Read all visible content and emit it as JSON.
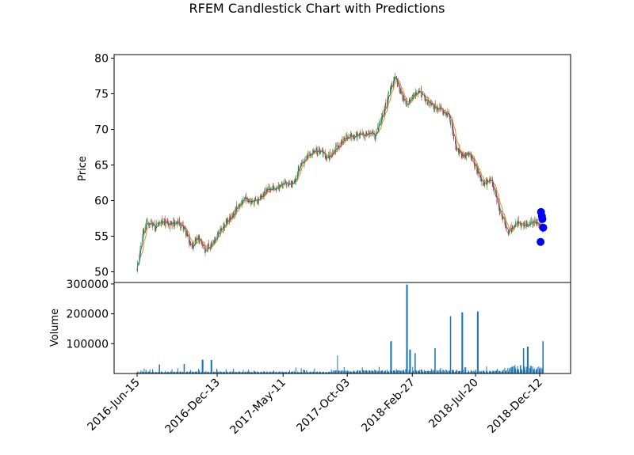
{
  "chart_data": {
    "type": "candlestick",
    "title": "RFEM Candlestick Chart with Predictions",
    "price_panel": {
      "ylabel": "Price",
      "ylim": [
        48.5,
        80.5
      ],
      "yticks": [
        50,
        55,
        60,
        65,
        70,
        75,
        80
      ],
      "close_series": [
        [
          "2016-06-15",
          50.6
        ],
        [
          "2016-06-25",
          54.5
        ],
        [
          "2016-07-08",
          57.0
        ],
        [
          "2016-07-25",
          56.2
        ],
        [
          "2016-08-10",
          57.1
        ],
        [
          "2016-08-28",
          56.6
        ],
        [
          "2016-09-15",
          56.9
        ],
        [
          "2016-09-30",
          56.0
        ],
        [
          "2016-10-15",
          53.5
        ],
        [
          "2016-11-01",
          54.6
        ],
        [
          "2016-11-15",
          52.9
        ],
        [
          "2016-12-01",
          53.8
        ],
        [
          "2016-12-20",
          55.8
        ],
        [
          "2017-01-10",
          57.3
        ],
        [
          "2017-01-30",
          59.2
        ],
        [
          "2017-02-15",
          60.4
        ],
        [
          "2017-03-01",
          59.8
        ],
        [
          "2017-03-20",
          60.2
        ],
        [
          "2017-04-05",
          61.5
        ],
        [
          "2017-04-25",
          61.9
        ],
        [
          "2017-05-11",
          62.6
        ],
        [
          "2017-06-01",
          62.2
        ],
        [
          "2017-06-20",
          65.2
        ],
        [
          "2017-07-10",
          66.5
        ],
        [
          "2017-08-01",
          67.1
        ],
        [
          "2017-08-20",
          66.0
        ],
        [
          "2017-09-10",
          67.5
        ],
        [
          "2017-10-03",
          69.0
        ],
        [
          "2017-10-25",
          69.1
        ],
        [
          "2017-11-15",
          69.4
        ],
        [
          "2017-12-05",
          69.2
        ],
        [
          "2017-12-20",
          71.5
        ],
        [
          "2018-01-05",
          75.0
        ],
        [
          "2018-01-18",
          77.6
        ],
        [
          "2018-02-01",
          75.0
        ],
        [
          "2018-02-15",
          73.4
        ],
        [
          "2018-02-27",
          74.6
        ],
        [
          "2018-03-12",
          75.6
        ],
        [
          "2018-03-25",
          74.4
        ],
        [
          "2018-04-10",
          73.4
        ],
        [
          "2018-04-30",
          72.9
        ],
        [
          "2018-05-20",
          72.2
        ],
        [
          "2018-06-05",
          67.5
        ],
        [
          "2018-06-20",
          66.3
        ],
        [
          "2018-07-05",
          66.8
        ],
        [
          "2018-07-20",
          64.8
        ],
        [
          "2018-08-05",
          62.4
        ],
        [
          "2018-08-25",
          62.8
        ],
        [
          "2018-09-15",
          58.2
        ],
        [
          "2018-10-01",
          55.6
        ],
        [
          "2018-10-20",
          56.9
        ],
        [
          "2018-11-10",
          56.4
        ],
        [
          "2018-11-25",
          57.1
        ],
        [
          "2018-12-12",
          56.6
        ],
        [
          "2018-12-20",
          56.0
        ]
      ],
      "predictions": [
        [
          "2018-12-15",
          58.4
        ],
        [
          "2018-12-17",
          57.8
        ],
        [
          "2018-12-18",
          57.4
        ],
        [
          "2018-12-20",
          56.2
        ],
        [
          "2018-12-14",
          54.2
        ]
      ]
    },
    "volume_panel": {
      "ylabel": "Volume",
      "ylim": [
        0,
        305000
      ],
      "yticks": [
        100000,
        200000,
        300000
      ],
      "ytick_labels": [
        "100000",
        "200000",
        "300000"
      ],
      "spikes": [
        [
          "2016-08-05",
          30000
        ],
        [
          "2016-09-30",
          32000
        ],
        [
          "2016-11-10",
          46000
        ],
        [
          "2016-11-30",
          45000
        ],
        [
          "2017-06-10",
          20000
        ],
        [
          "2017-09-10",
          60000
        ],
        [
          "2018-01-10",
          108000
        ],
        [
          "2018-02-15",
          298000
        ],
        [
          "2018-02-22",
          80000
        ],
        [
          "2018-03-05",
          68000
        ],
        [
          "2018-04-20",
          85000
        ],
        [
          "2018-05-25",
          192000
        ],
        [
          "2018-06-20",
          205000
        ],
        [
          "2018-07-25",
          208000
        ],
        [
          "2018-11-05",
          85000
        ],
        [
          "2018-11-15",
          90000
        ],
        [
          "2018-12-20",
          108000
        ]
      ]
    },
    "xticks": [
      "2016-Jun-15",
      "2016-Dec-13",
      "2017-May-11",
      "2017-Oct-03",
      "2018-Feb-27",
      "2018-Jul-20",
      "2018-Dec-12"
    ],
    "xtick_dates": [
      "2016-06-15",
      "2016-12-13",
      "2017-05-11",
      "2017-10-03",
      "2018-02-27",
      "2018-07-20",
      "2018-12-12"
    ],
    "grid": false,
    "colors": {
      "up": "#2ca02c",
      "down": "#d62728",
      "ma_fast": "#1f77b4",
      "ma_slow": "#ff7f0e",
      "volume": "#1f77b4",
      "prediction": "#0000ff"
    }
  }
}
